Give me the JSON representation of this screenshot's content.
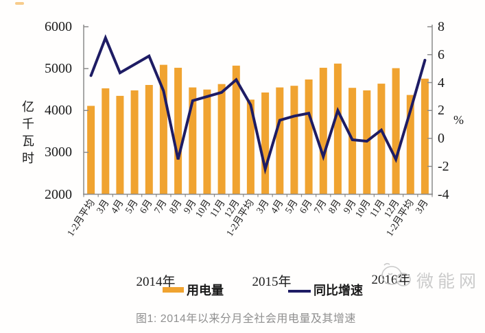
{
  "caption": "图1: 2014年以来分月全社会用电量及其增速",
  "watermark": "微能网",
  "chart_data": {
    "type": "combo-bar-line",
    "title": "",
    "unit_left": "亿千瓦时",
    "unit_right": "%",
    "left_ylim": [
      2000,
      6000
    ],
    "right_ylim": [
      -4,
      8
    ],
    "left_axis_ticks": [
      6000,
      5000,
      4000,
      3000,
      2000
    ],
    "right_axis_ticks": [
      8,
      6,
      4,
      2,
      0,
      -2,
      -4
    ],
    "grid": "off",
    "legend_position": "bottom",
    "categories": [
      "1-2月平均",
      "3月",
      "4月",
      "5月",
      "6月",
      "7月",
      "8月",
      "9月",
      "10月",
      "11月",
      "12月",
      "1-2月平均",
      "3月",
      "4月",
      "5月",
      "6月",
      "7月",
      "8月",
      "9月",
      "10月",
      "11月",
      "12月",
      "1-2月平均",
      "3月"
    ],
    "year_labels": [
      "2014年",
      "2015年",
      "2016年"
    ],
    "series": [
      {
        "name": "用电量",
        "type": "bar",
        "axis": "left",
        "unit": "亿千瓦时",
        "color": "#F0A330",
        "values": [
          4110,
          4530,
          4350,
          4480,
          4610,
          5090,
          5020,
          4550,
          4500,
          4630,
          5070,
          4260,
          4430,
          4550,
          4590,
          4740,
          5020,
          5120,
          4540,
          4480,
          4640,
          5010,
          4370,
          4760
        ]
      },
      {
        "name": "同比增速",
        "type": "line",
        "axis": "right",
        "unit": "%",
        "color": "#1E1C64",
        "values": [
          4.5,
          7.2,
          4.7,
          5.3,
          5.9,
          3.4,
          -1.5,
          2.7,
          3.0,
          3.3,
          4.2,
          2.4,
          -2.2,
          1.3,
          1.6,
          1.8,
          -1.3,
          2.0,
          -0.1,
          -0.2,
          0.6,
          -1.5,
          2.0,
          5.6
        ]
      }
    ]
  }
}
